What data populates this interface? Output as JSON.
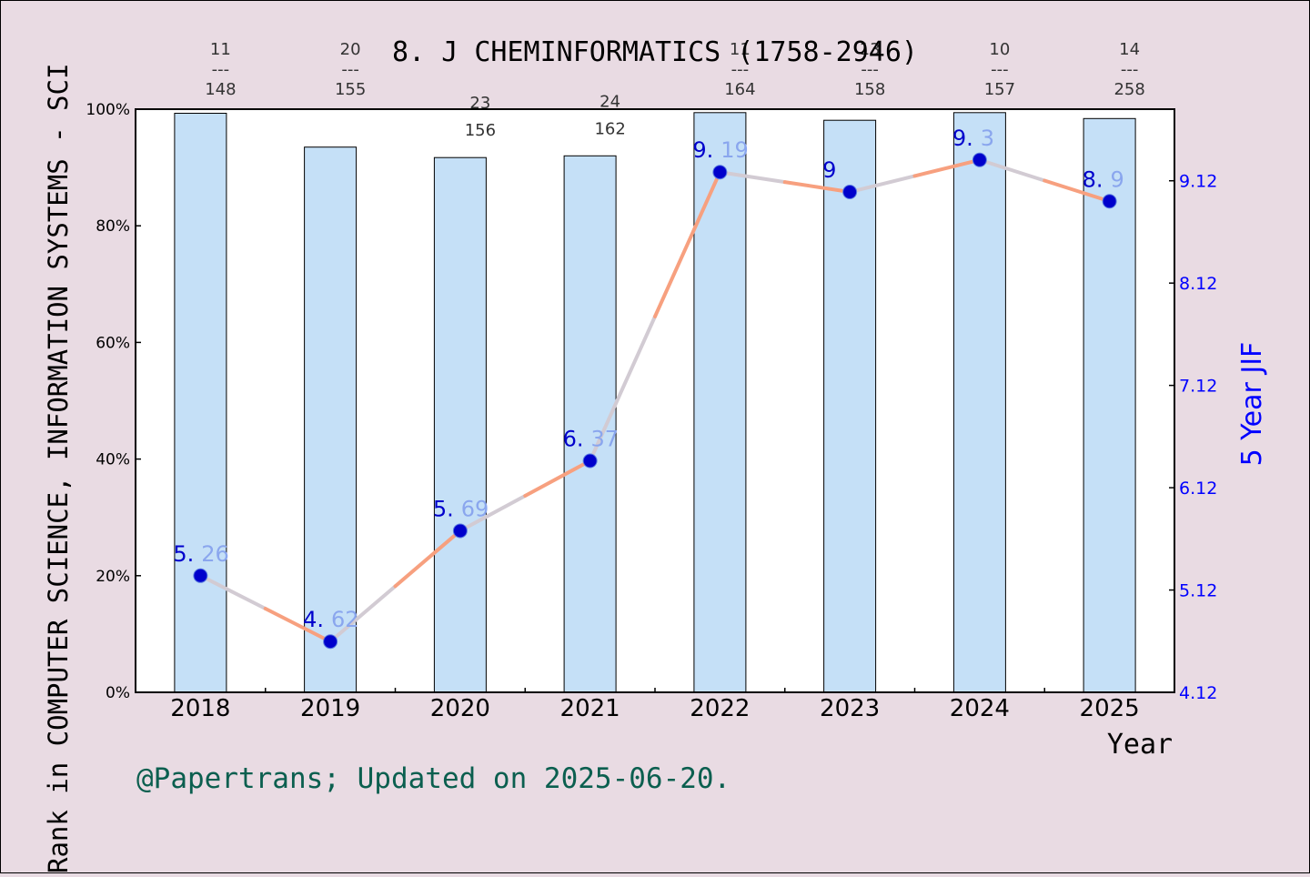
{
  "chart_data": {
    "type": "bar",
    "title": "8. J CHEMINFORMATICS (1758-2946)",
    "xlabel": "Year",
    "ylabel_left": "Rank in COMPUTER SCIENCE, INFORMATION SYSTEMS - SCI",
    "ylabel_right": "5 Year JIF",
    "categories": [
      "2018",
      "2019",
      "2020",
      "2021",
      "2022",
      "2023",
      "2024",
      "2025"
    ],
    "left_axis": {
      "ylim": [
        0,
        100
      ],
      "ticks": [
        0,
        20,
        40,
        60,
        80,
        100
      ],
      "tick_labels": [
        "0%",
        "20%",
        "40%",
        "60%",
        "80%",
        "100%"
      ]
    },
    "right_axis": {
      "ylim": [
        4.12,
        9.82
      ],
      "ticks": [
        4.12,
        5.12,
        6.12,
        7.12,
        8.12,
        9.12
      ],
      "tick_labels": [
        "4.12",
        "5.12",
        "6.12",
        "7.12",
        "8.12",
        "9.12"
      ]
    },
    "bars": {
      "values": [
        99.3,
        93.5,
        91.7,
        92.0,
        99.4,
        98.1,
        99.4,
        98.4
      ],
      "color": "#c5e0f7"
    },
    "rank_labels": [
      {
        "rank": "11",
        "sep": "---",
        "total": "148"
      },
      {
        "rank": "20",
        "sep": "---",
        "total": "155"
      },
      {
        "rank": "",
        "sep": "",
        "total": "156"
      },
      {
        "rank": "",
        "sep": "",
        "total": "162"
      },
      {
        "rank": "11",
        "sep": "---",
        "total": "164"
      },
      {
        "rank": "13",
        "sep": "---",
        "total": "158"
      },
      {
        "rank": "10",
        "sep": "---",
        "total": "157"
      },
      {
        "rank": "14",
        "sep": "---",
        "total": "258"
      }
    ],
    "rank_label_second": [
      "",
      "",
      "23",
      "24",
      "",
      "",
      "",
      ""
    ],
    "line": {
      "values": [
        20.0,
        8.7,
        27.7,
        39.7,
        89.2,
        85.8,
        91.3,
        84.2
      ],
      "jif_labels": [
        "5.26",
        "4.62",
        "5.69",
        "6.37",
        "9.19",
        "9",
        "9.3",
        "8.9"
      ],
      "color": "#f7a07f"
    },
    "grid": false,
    "footer": "@Papertrans; Updated on 2025-06-20."
  }
}
